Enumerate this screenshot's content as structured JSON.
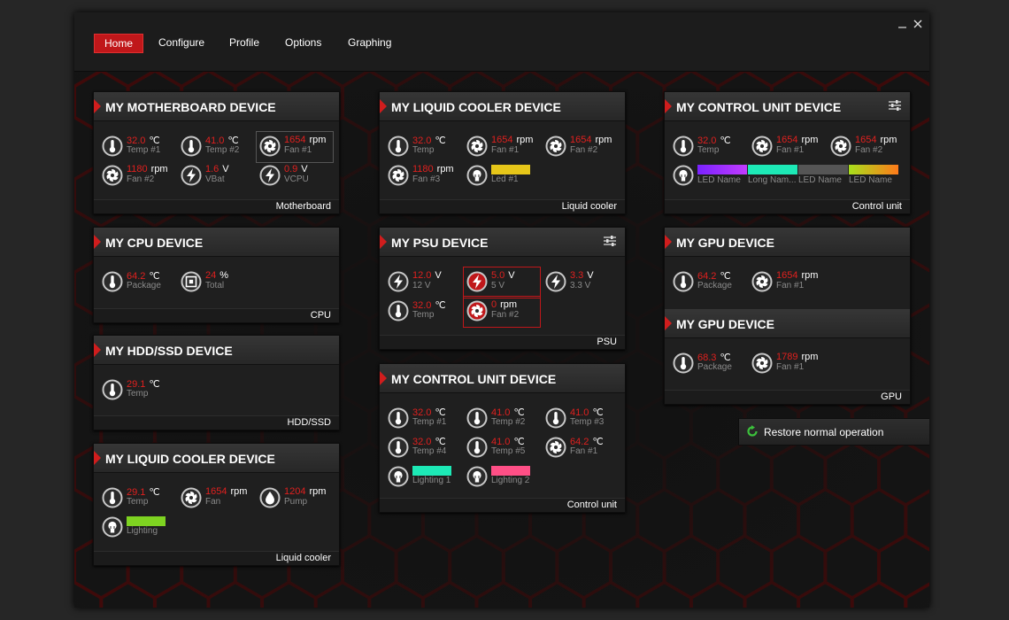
{
  "nav": {
    "items": [
      "Home",
      "Configure",
      "Profile",
      "Options",
      "Graphing"
    ],
    "active": 0
  },
  "panels": [
    {
      "title": "MY MOTHERBOARD DEVICE",
      "footer": "Motherboard",
      "sensors": [
        {
          "icon": "temp",
          "value": "32.0",
          "unit": "℃",
          "label": "Temp #1"
        },
        {
          "icon": "temp",
          "value": "41.0",
          "unit": "℃",
          "label": "Temp #2"
        },
        {
          "icon": "fan",
          "value": "1654",
          "unit": "rpm",
          "label": "Fan #1"
        },
        {
          "icon": "fan",
          "value": "1180",
          "unit": "rpm",
          "label": "Fan #2"
        },
        {
          "icon": "bolt",
          "value": "1.6",
          "unit": "V",
          "label": "VBat"
        },
        {
          "icon": "bolt",
          "value": "0.9",
          "unit": "V",
          "label": "VCPU"
        }
      ]
    },
    {
      "title": "MY CPU DEVICE",
      "footer": "CPU",
      "sensors": [
        {
          "icon": "temp",
          "value": "64.2",
          "unit": "℃",
          "label": "Package"
        },
        {
          "icon": "chip",
          "value": "24",
          "unit": "%",
          "label": "Total"
        }
      ]
    },
    {
      "title": "MY HDD/SSD DEVICE",
      "footer": "HDD/SSD",
      "sensors": [
        {
          "icon": "temp",
          "value": "29.1",
          "unit": "℃",
          "label": "Temp"
        }
      ]
    },
    {
      "title": "MY LIQUID COOLER DEVICE",
      "footer": "Liquid cooler",
      "sensors": [
        {
          "icon": "temp",
          "value": "29.1",
          "unit": "℃",
          "label": "Temp"
        },
        {
          "icon": "fan",
          "value": "1654",
          "unit": "rpm",
          "label": "Fan"
        },
        {
          "icon": "drop",
          "value": "1204",
          "unit": "rpm",
          "label": "Pump"
        },
        {
          "icon": "bulb",
          "color": "#7ed321",
          "label": "Lighting"
        }
      ]
    },
    {
      "title": "MY LIQUID COOLER DEVICE",
      "footer": "Liquid cooler",
      "sensors": [
        {
          "icon": "temp",
          "value": "32.0",
          "unit": "℃",
          "label": "Temp"
        },
        {
          "icon": "fan",
          "value": "1654",
          "unit": "rpm",
          "label": "Fan #1"
        },
        {
          "icon": "fan",
          "value": "1654",
          "unit": "rpm",
          "label": "Fan #2"
        },
        {
          "icon": "fan",
          "value": "1180",
          "unit": "rpm",
          "label": "Fan #3"
        },
        {
          "icon": "bulb",
          "color": "#e6c619",
          "label": "Led #1"
        }
      ]
    },
    {
      "title": "MY PSU DEVICE",
      "footer": "PSU",
      "sensors": [
        {
          "icon": "bolt",
          "value": "12.0",
          "unit": "V",
          "label": "12 V"
        },
        {
          "icon": "bolt",
          "value": "5.0",
          "unit": "V",
          "label": "5 V"
        },
        {
          "icon": "bolt",
          "value": "3.3",
          "unit": "V",
          "label": "3.3 V"
        },
        {
          "icon": "temp",
          "value": "32.0",
          "unit": "℃",
          "label": "Temp"
        },
        {
          "icon": "fan",
          "value": "0",
          "unit": "rpm",
          "label": "Fan #2"
        }
      ]
    },
    {
      "title": "MY CONTROL UNIT DEVICE",
      "footer": "Control unit",
      "sensors": [
        {
          "icon": "temp",
          "value": "32.0",
          "unit": "℃",
          "label": "Temp #1"
        },
        {
          "icon": "temp",
          "value": "41.0",
          "unit": "℃",
          "label": "Temp #2"
        },
        {
          "icon": "temp",
          "value": "41.0",
          "unit": "℃",
          "label": "Temp #3"
        },
        {
          "icon": "temp",
          "value": "32.0",
          "unit": "℃",
          "label": "Temp #4"
        },
        {
          "icon": "temp",
          "value": "41.0",
          "unit": "℃",
          "label": "Temp #5"
        },
        {
          "icon": "fan",
          "value": "64.2",
          "unit": "℃",
          "label": "Fan #1"
        },
        {
          "icon": "bulb",
          "color": "#1de9b6",
          "label": "Lighting 1"
        },
        {
          "icon": "bulb",
          "color": "#ff4f86",
          "label": "Lighting 2"
        }
      ]
    },
    {
      "title": "MY CONTROL UNIT DEVICE",
      "footer": "Control unit",
      "sensors": [
        {
          "icon": "temp",
          "value": "32.0",
          "unit": "℃",
          "label": "Temp"
        },
        {
          "icon": "fan",
          "value": "1654",
          "unit": "rpm",
          "label": "Fan #1"
        },
        {
          "icon": "fan",
          "value": "1654",
          "unit": "rpm",
          "label": "Fan #2"
        }
      ],
      "led_strip": {
        "icon": "bulb",
        "leds": [
          {
            "name": "LED Name",
            "colors": [
              "#7a22ff",
              "#c23cff"
            ]
          },
          {
            "name": "Long Nam...",
            "colors": [
              "#1de9b6",
              "#1de9b6"
            ]
          },
          {
            "name": "LED Name",
            "colors": [
              "#555555",
              "#555555"
            ]
          },
          {
            "name": "LED Name",
            "colors": [
              "#a8e01c",
              "#ff7a1a"
            ]
          }
        ]
      }
    },
    {
      "footer": "GPU",
      "sections": [
        {
          "title": "MY GPU DEVICE",
          "sensors": [
            {
              "icon": "temp",
              "value": "64.2",
              "unit": "℃",
              "label": "Package"
            },
            {
              "icon": "fan",
              "value": "1654",
              "unit": "rpm",
              "label": "Fan #1"
            }
          ]
        },
        {
          "title": "MY GPU DEVICE",
          "sensors": [
            {
              "icon": "temp",
              "value": "68.3",
              "unit": "℃",
              "label": "Package"
            },
            {
              "icon": "fan",
              "value": "1789",
              "unit": "rpm",
              "label": "Fan #1"
            }
          ]
        }
      ]
    }
  ],
  "restore_button": "Restore normal operation"
}
